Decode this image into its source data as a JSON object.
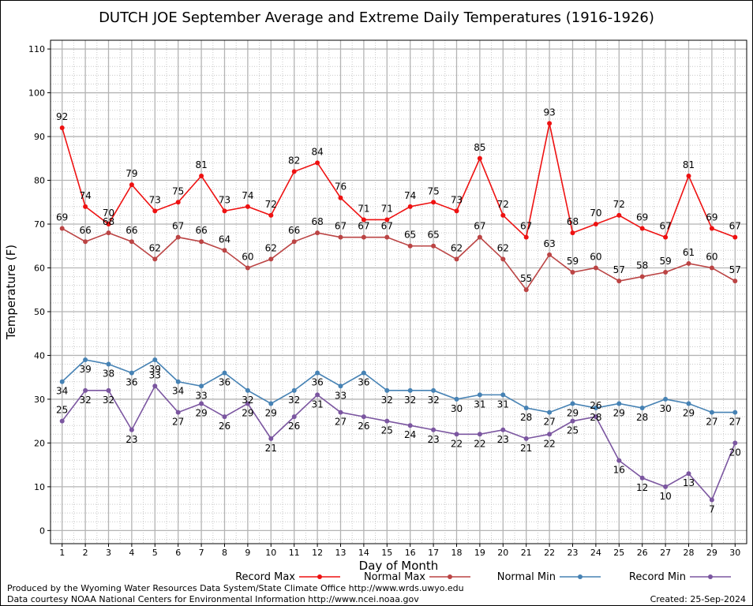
{
  "chart_data": {
    "type": "line",
    "title": "DUTCH JOE September Average and Extreme Daily Temperatures (1916-1926)",
    "xlabel": "Day of Month",
    "ylabel": "Temperature (F)",
    "x": [
      1,
      2,
      3,
      4,
      5,
      6,
      7,
      8,
      9,
      10,
      11,
      12,
      13,
      14,
      15,
      16,
      17,
      18,
      19,
      20,
      21,
      22,
      23,
      24,
      25,
      26,
      27,
      28,
      29,
      30
    ],
    "xlim": [
      0.5,
      30.5
    ],
    "ylim": [
      -3,
      112
    ],
    "yticks": [
      0,
      10,
      20,
      30,
      40,
      50,
      60,
      70,
      80,
      90,
      100,
      110
    ],
    "grid": true,
    "legend_position": "bottom",
    "series": [
      {
        "name": "Record Max",
        "color": "#ee1111",
        "values": [
          92,
          74,
          70,
          79,
          73,
          75,
          81,
          73,
          74,
          72,
          82,
          84,
          76,
          71,
          71,
          74,
          75,
          73,
          85,
          72,
          67,
          93,
          68,
          70,
          72,
          69,
          67,
          81,
          69,
          67
        ],
        "label_offsets": [
          -10,
          -10,
          -10,
          -10,
          -10,
          -10,
          -10,
          -10,
          -10,
          -10,
          -10,
          -10,
          -10,
          -10,
          -10,
          -10,
          -10,
          -10,
          -10,
          -10,
          -10,
          -10,
          -10,
          -10,
          -10,
          -10,
          -10,
          -10,
          -10,
          -10
        ]
      },
      {
        "name": "Normal Max",
        "color": "#bb4444",
        "values": [
          69,
          66,
          68,
          66,
          62,
          67,
          66,
          64,
          60,
          62,
          66,
          68,
          67,
          67,
          67,
          65,
          65,
          62,
          67,
          62,
          55,
          63,
          59,
          60,
          57,
          58,
          59,
          61,
          60,
          57
        ],
        "label_offsets": [
          -10,
          -10,
          -10,
          -10,
          -10,
          -10,
          -10,
          -10,
          -10,
          -10,
          -10,
          -10,
          -10,
          -10,
          -10,
          -10,
          -10,
          -10,
          -10,
          -10,
          -10,
          -10,
          -10,
          -10,
          -10,
          -10,
          -10,
          -10,
          -10,
          -10
        ]
      },
      {
        "name": "Normal Min",
        "color": "#4682b4",
        "values": [
          34,
          39,
          38,
          36,
          39,
          34,
          33,
          36,
          32,
          29,
          32,
          36,
          33,
          36,
          32,
          32,
          32,
          30,
          31,
          31,
          28,
          27,
          29,
          28,
          29,
          28,
          30,
          29,
          27,
          27
        ],
        "label_offsets": [
          16,
          16,
          16,
          16,
          16,
          16,
          16,
          16,
          16,
          16,
          16,
          16,
          16,
          16,
          16,
          16,
          16,
          16,
          16,
          16,
          16,
          16,
          16,
          16,
          16,
          16,
          16,
          16,
          16,
          16
        ]
      },
      {
        "name": "Record Min",
        "color": "#7b56a0",
        "values": [
          25,
          32,
          32,
          23,
          33,
          27,
          29,
          26,
          29,
          21,
          26,
          31,
          27,
          26,
          25,
          24,
          23,
          22,
          22,
          23,
          21,
          22,
          25,
          26,
          16,
          12,
          10,
          13,
          7,
          20
        ],
        "label_offsets": [
          -10,
          16,
          16,
          16,
          -10,
          16,
          16,
          16,
          16,
          16,
          16,
          16,
          16,
          16,
          16,
          16,
          16,
          16,
          16,
          16,
          16,
          16,
          16,
          -10,
          16,
          16,
          16,
          16,
          16,
          16
        ]
      }
    ]
  },
  "footer": {
    "line1": "Produced by the Wyoming Water Resources Data System/State Climate Office http://www.wrds.uwyo.edu",
    "line2": "Data courtesy NOAA National Centers for Environmental Information http://www.ncei.noaa.gov",
    "created": "Created:  25-Sep-2024"
  }
}
